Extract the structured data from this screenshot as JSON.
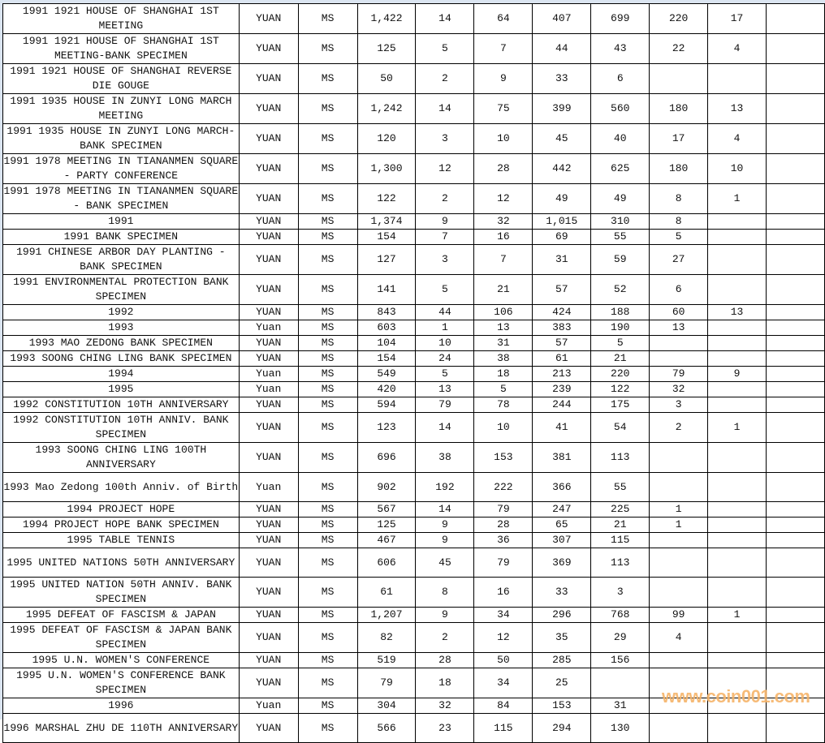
{
  "sheet": {
    "rows": [
      {
        "name": "1991 1921 HOUSE OF SHANGHAI 1ST MEETING",
        "unit": "YUAN",
        "grade": "MS",
        "values": [
          "1,422",
          "14",
          "64",
          "407",
          "699",
          "220",
          "17",
          ""
        ],
        "lines": 2
      },
      {
        "name": "1991 1921 HOUSE OF SHANGHAI 1ST MEETING-BANK SPECIMEN",
        "unit": "YUAN",
        "grade": "MS",
        "values": [
          "125",
          "5",
          "7",
          "44",
          "43",
          "22",
          "4",
          ""
        ],
        "lines": 2
      },
      {
        "name": "1991 1921 HOUSE OF SHANGHAI REVERSE DIE GOUGE",
        "unit": "YUAN",
        "grade": "MS",
        "values": [
          "50",
          "2",
          "9",
          "33",
          "6",
          "",
          "",
          ""
        ],
        "lines": 2
      },
      {
        "name": "1991 1935 HOUSE IN ZUNYI LONG MARCH MEETING",
        "unit": "YUAN",
        "grade": "MS",
        "values": [
          "1,242",
          "14",
          "75",
          "399",
          "560",
          "180",
          "13",
          ""
        ],
        "lines": 2
      },
      {
        "name": "1991 1935 HOUSE IN ZUNYI LONG MARCH-BANK SPECIMEN",
        "unit": "YUAN",
        "grade": "MS",
        "values": [
          "120",
          "3",
          "10",
          "45",
          "40",
          "17",
          "4",
          ""
        ],
        "lines": 2
      },
      {
        "name": "1991 1978 MEETING IN TIANANMEN SQUARE - PARTY CONFERENCE",
        "unit": "YUAN",
        "grade": "MS",
        "values": [
          "1,300",
          "12",
          "28",
          "442",
          "625",
          "180",
          "10",
          ""
        ],
        "lines": 2
      },
      {
        "name": "1991 1978 MEETING IN TIANANMEN SQUARE - BANK SPECIMEN",
        "unit": "YUAN",
        "grade": "MS",
        "values": [
          "122",
          "2",
          "12",
          "49",
          "49",
          "8",
          "1",
          ""
        ],
        "lines": 2
      },
      {
        "name": "1991",
        "unit": "YUAN",
        "grade": "MS",
        "values": [
          "1,374",
          "9",
          "32",
          "1,015",
          "310",
          "8",
          "",
          ""
        ],
        "lines": 1
      },
      {
        "name": "1991 BANK SPECIMEN",
        "unit": "YUAN",
        "grade": "MS",
        "values": [
          "154",
          "7",
          "16",
          "69",
          "55",
          "5",
          "",
          ""
        ],
        "lines": 1
      },
      {
        "name": "1991 CHINESE ARBOR DAY PLANTING - BANK SPECIMEN",
        "unit": "YUAN",
        "grade": "MS",
        "values": [
          "127",
          "3",
          "7",
          "31",
          "59",
          "27",
          "",
          ""
        ],
        "lines": 2
      },
      {
        "name": "1991 ENVIRONMENTAL PROTECTION BANK SPECIMEN",
        "unit": "YUAN",
        "grade": "MS",
        "values": [
          "141",
          "5",
          "21",
          "57",
          "52",
          "6",
          "",
          ""
        ],
        "lines": 2
      },
      {
        "name": "1992",
        "unit": "YUAN",
        "grade": "MS",
        "values": [
          "843",
          "44",
          "106",
          "424",
          "188",
          "60",
          "13",
          ""
        ],
        "lines": 1
      },
      {
        "name": "1993",
        "unit": "Yuan",
        "grade": "MS",
        "values": [
          "603",
          "1",
          "13",
          "383",
          "190",
          "13",
          "",
          ""
        ],
        "lines": 1
      },
      {
        "name": "1993 MAO ZEDONG BANK SPECIMEN",
        "unit": "YUAN",
        "grade": "MS",
        "values": [
          "104",
          "10",
          "31",
          "57",
          "5",
          "",
          "",
          ""
        ],
        "lines": 1
      },
      {
        "name": "1993 SOONG CHING LING BANK SPECIMEN",
        "unit": "YUAN",
        "grade": "MS",
        "values": [
          "154",
          "24",
          "38",
          "61",
          "21",
          "",
          "",
          ""
        ],
        "lines": 1
      },
      {
        "name": "1994",
        "unit": "Yuan",
        "grade": "MS",
        "values": [
          "549",
          "5",
          "18",
          "213",
          "220",
          "79",
          "9",
          ""
        ],
        "lines": 1
      },
      {
        "name": "1995",
        "unit": "Yuan",
        "grade": "MS",
        "values": [
          "420",
          "13",
          "5",
          "239",
          "122",
          "32",
          "",
          ""
        ],
        "lines": 1
      },
      {
        "name": "1992 CONSTITUTION 10TH ANNIVERSARY",
        "unit": "YUAN",
        "grade": "MS",
        "values": [
          "594",
          "79",
          "78",
          "244",
          "175",
          "3",
          "",
          ""
        ],
        "lines": 1
      },
      {
        "name": "1992 CONSTITUTION 10TH ANNIV. BANK SPECIMEN",
        "unit": "YUAN",
        "grade": "MS",
        "values": [
          "123",
          "14",
          "10",
          "41",
          "54",
          "2",
          "1",
          ""
        ],
        "lines": 2
      },
      {
        "name": "1993 SOONG CHING LING 100TH ANNIVERSARY",
        "unit": "YUAN",
        "grade": "MS",
        "values": [
          "696",
          "38",
          "153",
          "381",
          "113",
          "",
          "",
          ""
        ],
        "lines": 2
      },
      {
        "name": "1993 Mao Zedong 100th Anniv. of Birth",
        "unit": "Yuan",
        "grade": "MS",
        "values": [
          "902",
          "192",
          "222",
          "366",
          "55",
          "",
          "",
          ""
        ],
        "lines": 2
      },
      {
        "name": "1994 PROJECT HOPE",
        "unit": "YUAN",
        "grade": "MS",
        "values": [
          "567",
          "14",
          "79",
          "247",
          "225",
          "1",
          "",
          ""
        ],
        "lines": 1
      },
      {
        "name": "1994 PROJECT HOPE BANK SPECIMEN",
        "unit": "YUAN",
        "grade": "MS",
        "values": [
          "125",
          "9",
          "28",
          "65",
          "21",
          "1",
          "",
          ""
        ],
        "lines": 1
      },
      {
        "name": "1995 TABLE TENNIS",
        "unit": "YUAN",
        "grade": "MS",
        "values": [
          "467",
          "9",
          "36",
          "307",
          "115",
          "",
          "",
          ""
        ],
        "lines": 1
      },
      {
        "name": "1995 UNITED NATIONS 50TH ANNIVERSARY",
        "unit": "YUAN",
        "grade": "MS",
        "values": [
          "606",
          "45",
          "79",
          "369",
          "113",
          "",
          "",
          ""
        ],
        "lines": 2
      },
      {
        "name": "1995 UNITED NATION 50TH ANNIV. BANK SPECIMEN",
        "unit": "YUAN",
        "grade": "MS",
        "values": [
          "61",
          "8",
          "16",
          "33",
          "3",
          "",
          "",
          ""
        ],
        "lines": 2
      },
      {
        "name": "1995 DEFEAT OF FASCISM & JAPAN",
        "unit": "YUAN",
        "grade": "MS",
        "values": [
          "1,207",
          "9",
          "34",
          "296",
          "768",
          "99",
          "1",
          ""
        ],
        "lines": 1
      },
      {
        "name": "1995 DEFEAT OF FASCISM & JAPAN BANK SPECIMEN",
        "unit": "YUAN",
        "grade": "MS",
        "values": [
          "82",
          "2",
          "12",
          "35",
          "29",
          "4",
          "",
          ""
        ],
        "lines": 2
      },
      {
        "name": "1995 U.N. WOMEN'S CONFERENCE",
        "unit": "YUAN",
        "grade": "MS",
        "values": [
          "519",
          "28",
          "50",
          "285",
          "156",
          "",
          "",
          ""
        ],
        "lines": 1
      },
      {
        "name": "1995 U.N. WOMEN'S CONFERENCE BANK SPECIMEN",
        "unit": "YUAN",
        "grade": "MS",
        "values": [
          "79",
          "18",
          "34",
          "25",
          "",
          "",
          "",
          ""
        ],
        "lines": 2
      },
      {
        "name": "1996",
        "unit": "Yuan",
        "grade": "MS",
        "values": [
          "304",
          "32",
          "84",
          "153",
          "31",
          "",
          "",
          ""
        ],
        "lines": 1
      },
      {
        "name": "1996 MARSHAL ZHU DE 110TH ANNIVERSARY",
        "unit": "YUAN",
        "grade": "MS",
        "values": [
          "566",
          "23",
          "115",
          "294",
          "130",
          "",
          "",
          ""
        ],
        "lines": 2
      }
    ]
  },
  "watermark": "www.coin001.com",
  "colors": {
    "watermark": "#f6b46a",
    "grid": "#000000",
    "header_strip": "#dbe5f1"
  }
}
